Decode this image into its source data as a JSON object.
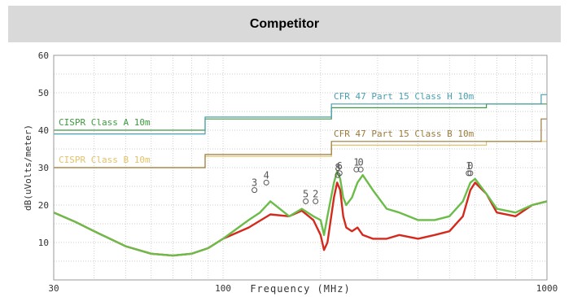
{
  "header": {
    "title": "Competitor"
  },
  "chart_data": {
    "type": "line",
    "xscale": "log",
    "xlim": [
      30,
      1000
    ],
    "ylim": [
      0,
      60
    ],
    "xlabel": "Frequency (MHz)",
    "ylabel": "dB(uVolts/meter)",
    "x_ticks": [
      "30",
      "100",
      "1000"
    ],
    "y_ticks": [
      "10",
      "20",
      "30",
      "40",
      "50",
      "60"
    ],
    "grid": true,
    "limit_lines": [
      {
        "name": "CISPR Class A 10m",
        "color": "#3e9a3e",
        "steps": [
          [
            30,
            40
          ],
          [
            88,
            40
          ],
          [
            88,
            43
          ],
          [
            216,
            43
          ],
          [
            216,
            46
          ],
          [
            650,
            46
          ],
          [
            650,
            47
          ],
          [
            1000,
            47
          ]
        ]
      },
      {
        "name": "CISPR Class B 10m",
        "color": "#e3c26a",
        "steps": [
          [
            30,
            30
          ],
          [
            88,
            30
          ],
          [
            88,
            33
          ],
          [
            216,
            33
          ],
          [
            216,
            36
          ],
          [
            650,
            36
          ],
          [
            650,
            37
          ],
          [
            1000,
            37
          ]
        ]
      },
      {
        "name": "CFR 47 Part 15 Class H 10m",
        "color": "#4a9fb0",
        "steps": [
          [
            30,
            39
          ],
          [
            88,
            39
          ],
          [
            88,
            43.5
          ],
          [
            216,
            43.5
          ],
          [
            216,
            47
          ],
          [
            960,
            47
          ],
          [
            960,
            49.5
          ],
          [
            1000,
            49.5
          ]
        ]
      },
      {
        "name": "CFR 47 Part 15 Class B 10m",
        "color": "#9a7a3c",
        "steps": [
          [
            30,
            30
          ],
          [
            88,
            30
          ],
          [
            88,
            33.5
          ],
          [
            216,
            33.5
          ],
          [
            216,
            37
          ],
          [
            960,
            37
          ],
          [
            960,
            43
          ],
          [
            1000,
            43
          ]
        ]
      }
    ],
    "series": [
      {
        "color": "#d42a1e",
        "x": [
          30,
          35,
          40,
          50,
          60,
          70,
          80,
          90,
          100,
          120,
          140,
          160,
          175,
          190,
          200,
          205,
          210,
          220,
          225,
          230,
          235,
          240,
          250,
          260,
          270,
          290,
          320,
          350,
          400,
          450,
          500,
          550,
          580,
          600,
          650,
          700,
          800,
          900,
          1000
        ],
        "y": [
          18,
          15.5,
          13,
          9,
          7,
          6.5,
          7,
          8.5,
          11,
          14,
          17.5,
          17,
          18.5,
          16,
          12,
          8,
          10,
          22,
          26,
          24,
          17,
          14,
          13,
          14,
          12,
          11,
          11,
          12,
          11,
          12,
          13,
          17,
          24,
          26,
          23,
          18,
          17,
          20,
          21
        ]
      },
      {
        "color": "#6cbc4a",
        "x": [
          30,
          35,
          40,
          50,
          60,
          70,
          80,
          90,
          100,
          120,
          130,
          140,
          160,
          175,
          190,
          200,
          205,
          210,
          220,
          225,
          230,
          235,
          240,
          250,
          260,
          270,
          290,
          320,
          350,
          400,
          450,
          500,
          550,
          580,
          600,
          650,
          700,
          800,
          900,
          1000
        ],
        "y": [
          18,
          15.5,
          13,
          9,
          7,
          6.5,
          7,
          8.5,
          11,
          16,
          18,
          21,
          17,
          19,
          17,
          16,
          12,
          17,
          26,
          29,
          27,
          22,
          20,
          22,
          26,
          28,
          24,
          19,
          18,
          16,
          16,
          17,
          21,
          26,
          27,
          23,
          19,
          18,
          20,
          21
        ]
      }
    ],
    "markers": [
      {
        "label": "3",
        "x": 125,
        "y": 24
      },
      {
        "label": "4",
        "x": 136,
        "y": 26
      },
      {
        "label": "5",
        "x": 180,
        "y": 21
      },
      {
        "label": "2",
        "x": 193,
        "y": 21
      },
      {
        "label": "8",
        "x": 226,
        "y": 28
      },
      {
        "label": "6",
        "x": 229,
        "y": 28.5
      },
      {
        "label": "1",
        "x": 258,
        "y": 29.5
      },
      {
        "label": "0",
        "x": 266,
        "y": 29.5
      },
      {
        "label": "1",
        "x": 573,
        "y": 28.5
      },
      {
        "label": "0",
        "x": 580,
        "y": 28.5
      }
    ]
  }
}
